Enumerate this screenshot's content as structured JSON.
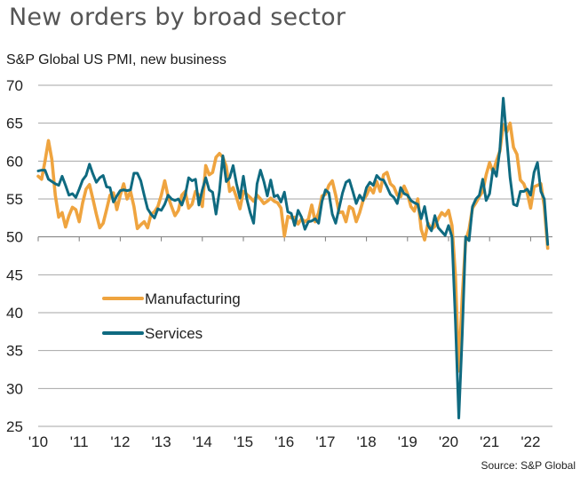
{
  "chart_data": {
    "type": "line",
    "title": "New orders by broad sector",
    "subtitle": "S&P Global US PMI,  new business",
    "source": "Source: S&P Global",
    "xlabel": "",
    "ylabel": "",
    "ylim": [
      25,
      70
    ],
    "yticks": [
      25,
      30,
      35,
      40,
      45,
      50,
      55,
      60,
      65,
      70
    ],
    "ytick_labels": [
      "25",
      "30",
      "35",
      "40",
      "45",
      "50",
      "55",
      "60",
      "65",
      "70"
    ],
    "x_start": "2010-01",
    "x_frequency": "monthly",
    "xticks": [
      "'10",
      "'11",
      "'12",
      "'13",
      "'14",
      "'15",
      "'16",
      "'17",
      "'18",
      "'19",
      "'20",
      "'21",
      "'22"
    ],
    "xtick_years": [
      2010,
      2011,
      2012,
      2013,
      2014,
      2015,
      2016,
      2017,
      2018,
      2019,
      2020,
      2021,
      2022
    ],
    "grid": "horizontal",
    "axis_line_at": 50,
    "legend_position": "center-left",
    "series": [
      {
        "name": "Manufacturing",
        "color": "#EFA43F",
        "values": [
          58.0,
          57.6,
          60.0,
          62.7,
          60.2,
          55.5,
          52.6,
          53.2,
          51.3,
          52.8,
          53.9,
          53.6,
          52.0,
          54.5,
          56.3,
          56.9,
          55.0,
          53.0,
          51.2,
          51.8,
          53.6,
          55.5,
          55.8,
          53.6,
          55.5,
          57.0,
          55.0,
          56.0,
          54.0,
          51.1,
          51.6,
          52.0,
          51.2,
          53.0,
          53.3,
          54.0,
          55.5,
          57.4,
          55.3,
          54.0,
          52.8,
          53.5,
          55.5,
          56.0,
          53.8,
          54.3,
          56.0,
          55.5,
          54.0,
          59.4,
          58.2,
          58.5,
          60.5,
          61.0,
          60.5,
          59.3,
          56.0,
          56.5,
          55.2,
          53.7,
          56.0,
          55.6,
          55.2,
          54.7,
          55.5,
          55.0,
          54.4,
          54.7,
          55.1,
          54.7,
          54.5,
          53.8,
          50.1,
          52.7,
          52.5,
          52.6,
          51.7,
          52.4,
          52.0,
          52.3,
          54.2,
          52.0,
          53.2,
          55.4,
          55.6,
          56.8,
          57.4,
          55.5,
          53.2,
          53.3,
          52.0,
          54.0,
          53.7,
          52.0,
          53.2,
          54.8,
          55.5,
          56.5,
          55.8,
          57.3,
          56.0,
          58.2,
          58.5,
          57.0,
          56.6,
          55.5,
          55.3,
          56.7,
          55.7,
          54.0,
          53.4,
          55.0,
          51.0,
          49.6,
          51.8,
          51.0,
          51.4,
          52.4,
          53.2,
          52.8,
          53.5,
          51.5,
          45.0,
          32.3,
          42.0,
          49.5,
          51.0,
          53.8,
          54.5,
          55.3,
          56.0,
          58.2,
          59.8,
          58.5,
          60.0,
          61.3,
          64.8,
          63.8,
          65.0,
          61.8,
          60.9,
          57.5,
          57.0,
          55.8,
          53.8,
          56.6,
          56.8,
          57.0,
          54.0,
          48.5
        ]
      },
      {
        "name": "Services",
        "color": "#0F6A80",
        "values": [
          58.7,
          58.8,
          58.8,
          57.6,
          57.3,
          57.0,
          56.8,
          58.0,
          56.8,
          55.5,
          55.7,
          55.2,
          56.3,
          57.5,
          58.1,
          59.6,
          58.3,
          57.2,
          57.8,
          58.1,
          56.6,
          56.5,
          54.6,
          55.4,
          56.1,
          56.2,
          56.1,
          56.2,
          58.4,
          58.4,
          57.4,
          55.5,
          53.7,
          53.0,
          52.5,
          53.7,
          53.5,
          54.3,
          55.5,
          55.0,
          54.8,
          55.0,
          54.2,
          55.5,
          57.8,
          57.4,
          57.6,
          54.2,
          56.2,
          57.8,
          56.2,
          55.9,
          53.0,
          56.0,
          60.7,
          57.3,
          57.8,
          59.4,
          57.0,
          55.1,
          58.0,
          55.0,
          53.2,
          51.8,
          57.0,
          58.8,
          57.3,
          55.4,
          57.5,
          55.3,
          55.5,
          54.6,
          55.9,
          53.3,
          53.1,
          51.5,
          53.5,
          52.6,
          51.0,
          52.0,
          52.1,
          52.4,
          51.8,
          54.7,
          56.2,
          55.8,
          53.0,
          51.8,
          53.8,
          55.8,
          57.2,
          57.5,
          56.0,
          54.4,
          55.5,
          54.8,
          56.5,
          57.2,
          56.8,
          58.1,
          57.6,
          57.5,
          56.6,
          55.6,
          55.2,
          54.4,
          56.5,
          55.7,
          55.5,
          54.8,
          54.5,
          54.3,
          52.4,
          54.0,
          51.5,
          50.8,
          52.8,
          51.2,
          50.7,
          50.2,
          51.5,
          50.0,
          39.0,
          26.1,
          37.0,
          50.0,
          49.5,
          54.0,
          55.0,
          55.5,
          57.6,
          54.8,
          55.7,
          59.0,
          58.0,
          61.5,
          68.3,
          63.0,
          57.8,
          54.3,
          54.1,
          56.0,
          56.0,
          56.3,
          55.5,
          58.5,
          59.8,
          56.0,
          55.0,
          49.0
        ]
      }
    ]
  }
}
